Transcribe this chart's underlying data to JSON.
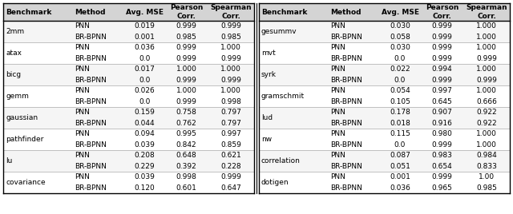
{
  "left_table": {
    "headers": [
      "Benchmark",
      "Method",
      "Avg. MSE",
      "Pearson\nCorr.",
      "Spearman\nCorr."
    ],
    "benchmarks": [
      "2mm",
      "atax",
      "bicg",
      "gemm",
      "gaussian",
      "pathfinder",
      "lu",
      "covariance"
    ],
    "rows": [
      [
        "2mm",
        "PNN",
        "0.019",
        "0.999",
        "0.999"
      ],
      [
        "2mm",
        "BR-BPNN",
        "0.001",
        "0.985",
        "0.985"
      ],
      [
        "atax",
        "PNN",
        "0.036",
        "0.999",
        "1.000"
      ],
      [
        "atax",
        "BR-BPNN",
        "0.0",
        "0.999",
        "0.999"
      ],
      [
        "bicg",
        "PNN",
        "0.017",
        "1.000",
        "1.000"
      ],
      [
        "bicg",
        "BR-BPNN",
        "0.0",
        "0.999",
        "0.999"
      ],
      [
        "gemm",
        "PNN",
        "0.026",
        "1.000",
        "1.000"
      ],
      [
        "gemm",
        "BR-BPNN",
        "0.0",
        "0.999",
        "0.998"
      ],
      [
        "gaussian",
        "PNN",
        "0.159",
        "0.758",
        "0.797"
      ],
      [
        "gaussian",
        "BR-BPNN",
        "0.044",
        "0.762",
        "0.797"
      ],
      [
        "pathfinder",
        "PNN",
        "0.094",
        "0.995",
        "0.997"
      ],
      [
        "pathfinder",
        "BR-BPNN",
        "0.039",
        "0.842",
        "0.859"
      ],
      [
        "lu",
        "PNN",
        "0.208",
        "0.648",
        "0.621"
      ],
      [
        "lu",
        "BR-BPNN",
        "0.229",
        "0.392",
        "0.228"
      ],
      [
        "covariance",
        "PNN",
        "0.039",
        "0.998",
        "0.999"
      ],
      [
        "covariance",
        "BR-BPNN",
        "0.120",
        "0.601",
        "0.647"
      ]
    ]
  },
  "right_table": {
    "headers": [
      "Benchmark",
      "Method",
      "Avg. MSE",
      "Pearson\nCorr.",
      "Spearman\nCorr."
    ],
    "benchmarks": [
      "gesummv",
      "mvt",
      "syrk",
      "gramschmit",
      "lud",
      "nw",
      "correlation",
      "dotigen"
    ],
    "rows": [
      [
        "gesummv",
        "PNN",
        "0.030",
        "0.999",
        "1.000"
      ],
      [
        "gesummv",
        "BR-BPNN",
        "0.058",
        "0.999",
        "1.000"
      ],
      [
        "mvt",
        "PNN",
        "0.030",
        "0.999",
        "1.000"
      ],
      [
        "mvt",
        "BR-BPNN",
        "0.0",
        "0.999",
        "0.999"
      ],
      [
        "syrk",
        "PNN",
        "0.022",
        "0.994",
        "1.000"
      ],
      [
        "syrk",
        "BR-BPNN",
        "0.0",
        "0.999",
        "0.999"
      ],
      [
        "gramschmit",
        "PNN",
        "0.054",
        "0.997",
        "1.000"
      ],
      [
        "gramschmit",
        "BR-BPNN",
        "0.105",
        "0.645",
        "0.666"
      ],
      [
        "lud",
        "PNN",
        "0.178",
        "0.907",
        "0.922"
      ],
      [
        "lud",
        "BR-BPNN",
        "0.018",
        "0.916",
        "0.922"
      ],
      [
        "nw",
        "PNN",
        "0.115",
        "0.980",
        "1.000"
      ],
      [
        "nw",
        "BR-BPNN",
        "0.0",
        "0.999",
        "1.000"
      ],
      [
        "correlation",
        "PNN",
        "0.087",
        "0.983",
        "0.984"
      ],
      [
        "correlation",
        "BR-BPNN",
        "0.051",
        "0.654",
        "0.833"
      ],
      [
        "dotigen",
        "PNN",
        "0.001",
        "0.999",
        "1.00"
      ],
      [
        "dotigen",
        "BR-BPNN",
        "0.036",
        "0.965",
        "0.985"
      ]
    ]
  },
  "font_size": 6.5,
  "header_font_size": 6.5
}
